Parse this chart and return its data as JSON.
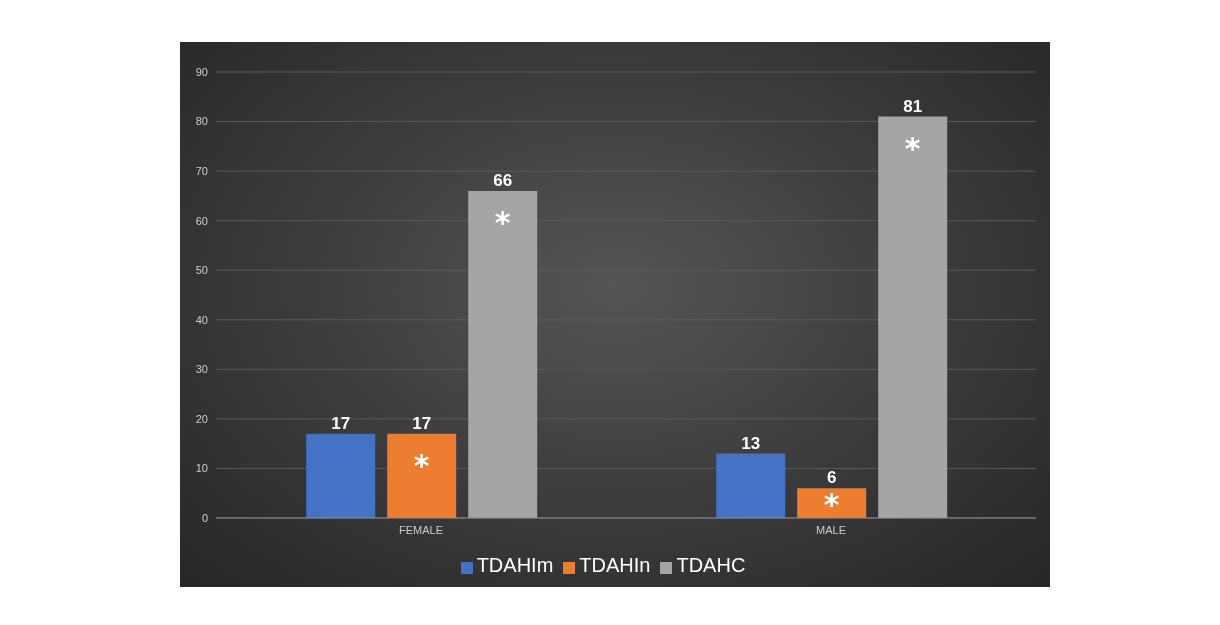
{
  "chart_data": {
    "type": "bar",
    "categories": [
      "FEMALE",
      "MALE"
    ],
    "series": [
      {
        "name": "TDAHIm",
        "color": "#4472c4",
        "values": [
          17,
          13
        ]
      },
      {
        "name": "TDAHIn",
        "color": "#ed7d31",
        "values": [
          17,
          6
        ]
      },
      {
        "name": "TDAHC",
        "color": "#a5a5a5",
        "values": [
          66,
          81
        ]
      }
    ],
    "ylim": [
      0,
      90
    ],
    "yticks": [
      0,
      10,
      20,
      30,
      40,
      50,
      60,
      70,
      80,
      90
    ],
    "grid": "y",
    "legend": "bottom",
    "data_labels": true,
    "annotations": [
      {
        "text": "*",
        "x": "FEMALE",
        "y": 17
      },
      "*",
      {
        "text": "*",
        "x": "MALE",
        "y": 6
      },
      "*"
    ]
  }
}
